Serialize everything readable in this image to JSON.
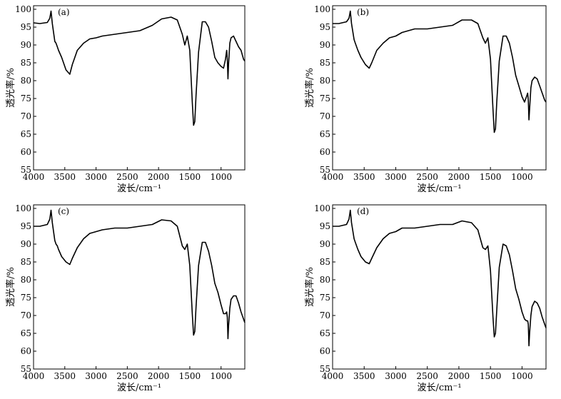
{
  "chart_data": [
    {
      "type": "line",
      "panel_label": "(a)",
      "xlabel": "波长/cm⁻¹",
      "ylabel": "透光率/%",
      "xlim": [
        4000,
        620
      ],
      "ylim": [
        55,
        101
      ],
      "x_reversed": true,
      "grid": false,
      "xticks": [
        4000,
        3500,
        3000,
        2500,
        2000,
        1500,
        1000
      ],
      "yticks": [
        55,
        60,
        65,
        70,
        75,
        80,
        85,
        90,
        95,
        100
      ],
      "series": [
        {
          "x": [
            4000,
            3900,
            3780,
            3740,
            3720,
            3700,
            3660,
            3640,
            3620,
            3600,
            3550,
            3480,
            3420,
            3380,
            3300,
            3200,
            3100,
            3000,
            2900,
            2700,
            2500,
            2300,
            2100,
            1950,
            1800,
            1700,
            1620,
            1580,
            1540,
            1500,
            1460,
            1440,
            1420,
            1400,
            1360,
            1300,
            1250,
            1200,
            1150,
            1100,
            1050,
            1000,
            960,
            930,
            910,
            900,
            890,
            880,
            860,
            840,
            800,
            760,
            720,
            680,
            640,
            620
          ],
          "y": [
            96.2,
            96.0,
            96.3,
            97.5,
            99.5,
            96.0,
            91.0,
            90.5,
            89.5,
            88.5,
            86.5,
            83.0,
            81.8,
            84.5,
            88.5,
            90.5,
            91.7,
            92.0,
            92.5,
            93.0,
            93.5,
            94.0,
            95.5,
            97.3,
            97.8,
            97.0,
            93.0,
            90.0,
            92.5,
            88.5,
            74.0,
            67.5,
            68.5,
            76.0,
            88.0,
            96.5,
            96.5,
            95.0,
            91.0,
            86.5,
            85.0,
            84.0,
            83.5,
            86.0,
            88.5,
            86.0,
            80.5,
            84.5,
            90.5,
            92.0,
            92.5,
            91.0,
            89.5,
            88.5,
            86.0,
            85.5
          ]
        }
      ]
    },
    {
      "type": "line",
      "panel_label": "(b)",
      "xlabel": "波长/cm⁻¹",
      "ylabel": "透光率/%",
      "xlim": [
        4000,
        620
      ],
      "ylim": [
        55,
        101
      ],
      "x_reversed": true,
      "grid": false,
      "xticks": [
        4000,
        3500,
        3000,
        2500,
        2000,
        1500,
        1000
      ],
      "yticks": [
        55,
        60,
        65,
        70,
        75,
        80,
        85,
        90,
        95,
        100
      ],
      "series": [
        {
          "x": [
            4000,
            3900,
            3780,
            3740,
            3720,
            3700,
            3660,
            3640,
            3620,
            3600,
            3550,
            3480,
            3420,
            3380,
            3300,
            3200,
            3100,
            3000,
            2900,
            2700,
            2500,
            2300,
            2100,
            1950,
            1800,
            1700,
            1620,
            1580,
            1540,
            1500,
            1460,
            1440,
            1420,
            1400,
            1360,
            1300,
            1250,
            1200,
            1150,
            1100,
            1050,
            1000,
            960,
            930,
            910,
            900,
            890,
            880,
            860,
            840,
            800,
            760,
            720,
            680,
            640,
            620
          ],
          "y": [
            96.0,
            96.0,
            96.5,
            97.5,
            99.5,
            96.0,
            91.5,
            90.5,
            89.5,
            88.5,
            86.5,
            84.5,
            83.5,
            85.0,
            88.5,
            90.5,
            92.0,
            92.5,
            93.5,
            94.5,
            94.5,
            95.0,
            95.5,
            97.0,
            97.0,
            96.0,
            92.0,
            90.5,
            92.0,
            86.0,
            72.0,
            65.5,
            66.5,
            74.0,
            85.5,
            92.5,
            92.5,
            90.5,
            86.5,
            81.5,
            78.5,
            75.5,
            74.0,
            75.5,
            76.5,
            74.5,
            69.0,
            72.0,
            78.0,
            80.0,
            81.0,
            80.5,
            78.5,
            76.5,
            74.5,
            74.0
          ]
        }
      ]
    },
    {
      "type": "line",
      "panel_label": "(c)",
      "xlabel": "波长/cm⁻¹",
      "ylabel": "透光率/%",
      "xlim": [
        4000,
        620
      ],
      "ylim": [
        55,
        101
      ],
      "x_reversed": true,
      "grid": false,
      "xticks": [
        4000,
        3500,
        3000,
        2500,
        2000,
        1500,
        1000
      ],
      "yticks": [
        55,
        60,
        65,
        70,
        75,
        80,
        85,
        90,
        95,
        100
      ],
      "series": [
        {
          "x": [
            4000,
            3900,
            3780,
            3740,
            3720,
            3700,
            3660,
            3640,
            3620,
            3600,
            3550,
            3480,
            3420,
            3380,
            3300,
            3200,
            3100,
            3000,
            2900,
            2700,
            2500,
            2300,
            2100,
            1950,
            1800,
            1700,
            1620,
            1580,
            1540,
            1500,
            1460,
            1440,
            1420,
            1400,
            1360,
            1300,
            1250,
            1200,
            1150,
            1100,
            1050,
            1000,
            960,
            930,
            910,
            900,
            890,
            880,
            860,
            840,
            800,
            760,
            720,
            680,
            640,
            620
          ],
          "y": [
            95.0,
            95.0,
            95.5,
            97.0,
            99.5,
            96.0,
            91.0,
            90.0,
            89.5,
            88.5,
            86.5,
            85.0,
            84.3,
            86.0,
            89.0,
            91.5,
            93.0,
            93.5,
            94.0,
            94.5,
            94.5,
            95.0,
            95.5,
            96.8,
            96.5,
            95.0,
            89.5,
            88.5,
            90.0,
            84.0,
            70.5,
            64.5,
            65.5,
            72.5,
            84.0,
            90.5,
            90.5,
            88.0,
            84.0,
            79.0,
            76.5,
            73.0,
            70.5,
            70.5,
            71.0,
            69.5,
            63.5,
            67.0,
            72.0,
            74.5,
            75.5,
            75.5,
            73.5,
            71.0,
            69.0,
            68.0
          ]
        }
      ]
    },
    {
      "type": "line",
      "panel_label": "(d)",
      "xlabel": "波长/cm⁻¹",
      "ylabel": "透光率/%",
      "xlim": [
        4000,
        620
      ],
      "ylim": [
        55,
        101
      ],
      "x_reversed": true,
      "grid": false,
      "xticks": [
        4000,
        3500,
        3000,
        2500,
        2000,
        1500,
        1000
      ],
      "yticks": [
        55,
        60,
        65,
        70,
        75,
        80,
        85,
        90,
        95,
        100
      ],
      "series": [
        {
          "x": [
            4000,
            3900,
            3780,
            3740,
            3720,
            3700,
            3660,
            3640,
            3620,
            3600,
            3550,
            3480,
            3420,
            3380,
            3300,
            3200,
            3100,
            3000,
            2900,
            2700,
            2500,
            2300,
            2100,
            1950,
            1800,
            1700,
            1620,
            1580,
            1540,
            1500,
            1460,
            1440,
            1420,
            1400,
            1360,
            1300,
            1250,
            1200,
            1150,
            1100,
            1050,
            1000,
            960,
            930,
            910,
            900,
            890,
            880,
            860,
            840,
            800,
            760,
            720,
            680,
            640,
            620
          ],
          "y": [
            95.0,
            95.0,
            95.5,
            97.0,
            99.5,
            96.0,
            91.5,
            90.5,
            89.5,
            88.5,
            86.5,
            85.0,
            84.5,
            86.0,
            89.0,
            91.5,
            93.0,
            93.5,
            94.5,
            94.5,
            95.0,
            95.5,
            95.5,
            96.5,
            96.0,
            94.0,
            89.0,
            88.5,
            89.5,
            82.5,
            69.5,
            64.0,
            65.0,
            71.5,
            83.5,
            90.0,
            89.5,
            87.0,
            82.5,
            77.5,
            74.5,
            71.0,
            69.0,
            68.5,
            68.5,
            67.5,
            61.5,
            65.0,
            70.0,
            72.5,
            74.0,
            73.5,
            72.0,
            69.5,
            67.5,
            66.5
          ]
        }
      ]
    }
  ]
}
